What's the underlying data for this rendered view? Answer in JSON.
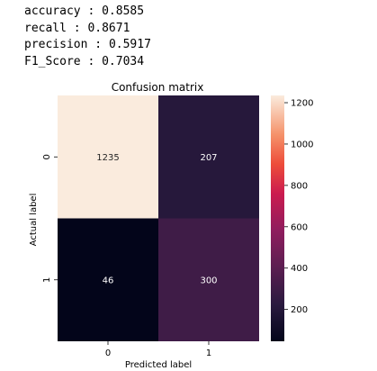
{
  "metrics": [
    {
      "name": "accuracy",
      "value": "0.8585"
    },
    {
      "name": "recall",
      "value": "0.8671"
    },
    {
      "name": "precision",
      "value": "0.5917"
    },
    {
      "name": "F1_Score",
      "value": "0.7034"
    }
  ],
  "chart_data": {
    "type": "heatmap",
    "title": "Confusion matrix",
    "xlabel": "Predicted label",
    "ylabel": "Actual label",
    "x_categories": [
      "0",
      "1"
    ],
    "y_categories": [
      "0",
      "1"
    ],
    "values": [
      [
        1235,
        207
      ],
      [
        46,
        300
      ]
    ],
    "annotations": [
      [
        "1235",
        "207"
      ],
      [
        "46",
        "300"
      ]
    ],
    "colorbar": {
      "min": 46,
      "max": 1235,
      "ticks": [
        200,
        400,
        600,
        800,
        1000,
        1200
      ]
    },
    "colormap": "rocket",
    "grid": false
  }
}
